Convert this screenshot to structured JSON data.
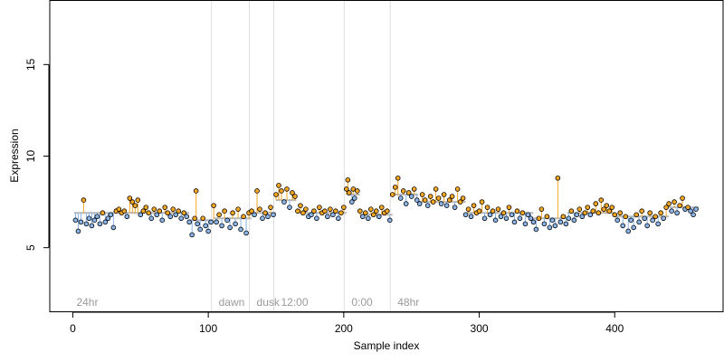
{
  "chart_data": {
    "type": "scatter",
    "title": "",
    "xlabel": "Sample index",
    "ylabel": "Expression",
    "xlim": [
      -17,
      480
    ],
    "ylim": [
      1.5,
      18.5
    ],
    "x_ticks": [
      0,
      100,
      200,
      300,
      400
    ],
    "y_ticks": [
      5,
      10,
      15
    ],
    "grid": false,
    "legend": "none",
    "colors": {
      "above_fit": "#f5a623",
      "below_fit": "#8ab4e8",
      "fit_line": "#b8b8b8",
      "phase_line": "#dddddd",
      "phase_text": "#9a9a9a"
    },
    "phase_markers": [
      {
        "label": "24hr",
        "x": 0
      },
      {
        "label": "dawn",
        "x": 105
      },
      {
        "label": "dusk",
        "x": 133
      },
      {
        "label": "12:00",
        "x": 151
      },
      {
        "label": "0:00",
        "x": 203
      },
      {
        "label": "48hr",
        "x": 237
      }
    ],
    "segments": [
      {
        "x0": 1,
        "x1": 86,
        "level": 6.9
      },
      {
        "x0": 86,
        "x1": 104,
        "level": 6.5
      },
      {
        "x0": 104,
        "x1": 132,
        "level": 6.6
      },
      {
        "x0": 132,
        "x1": 150,
        "level": 6.9
      },
      {
        "x0": 150,
        "x1": 165,
        "level": 7.6
      },
      {
        "x0": 165,
        "x1": 202,
        "level": 6.9
      },
      {
        "x0": 202,
        "x1": 212,
        "level": 7.9
      },
      {
        "x0": 212,
        "x1": 236,
        "level": 6.8
      },
      {
        "x0": 236,
        "x1": 255,
        "level": 7.9
      },
      {
        "x0": 255,
        "x1": 290,
        "level": 7.5
      },
      {
        "x0": 290,
        "x1": 340,
        "level": 6.9
      },
      {
        "x0": 340,
        "x1": 365,
        "level": 6.6
      },
      {
        "x0": 365,
        "x1": 400,
        "level": 6.9
      },
      {
        "x0": 400,
        "x1": 440,
        "level": 6.7
      },
      {
        "x0": 440,
        "x1": 462,
        "level": 7.2
      }
    ],
    "points": [
      {
        "x": 2,
        "y": 6.5
      },
      {
        "x": 4,
        "y": 5.9
      },
      {
        "x": 6,
        "y": 6.4
      },
      {
        "x": 8,
        "y": 7.6
      },
      {
        "x": 10,
        "y": 6.3
      },
      {
        "x": 12,
        "y": 6.6
      },
      {
        "x": 14,
        "y": 6.2
      },
      {
        "x": 16,
        "y": 6.5
      },
      {
        "x": 18,
        "y": 6.7
      },
      {
        "x": 20,
        "y": 6.3
      },
      {
        "x": 22,
        "y": 6.9
      },
      {
        "x": 24,
        "y": 6.4
      },
      {
        "x": 26,
        "y": 6.6
      },
      {
        "x": 28,
        "y": 6.8
      },
      {
        "x": 30,
        "y": 6.1
      },
      {
        "x": 32,
        "y": 7.0
      },
      {
        "x": 34,
        "y": 7.1
      },
      {
        "x": 36,
        "y": 6.9
      },
      {
        "x": 38,
        "y": 7.0
      },
      {
        "x": 40,
        "y": 6.7
      },
      {
        "x": 42,
        "y": 7.7
      },
      {
        "x": 44,
        "y": 7.5
      },
      {
        "x": 46,
        "y": 7.3
      },
      {
        "x": 48,
        "y": 7.6
      },
      {
        "x": 50,
        "y": 6.8
      },
      {
        "x": 52,
        "y": 7.0
      },
      {
        "x": 54,
        "y": 7.2
      },
      {
        "x": 56,
        "y": 6.9
      },
      {
        "x": 58,
        "y": 6.6
      },
      {
        "x": 60,
        "y": 7.1
      },
      {
        "x": 62,
        "y": 6.8
      },
      {
        "x": 64,
        "y": 7.0
      },
      {
        "x": 66,
        "y": 6.5
      },
      {
        "x": 68,
        "y": 7.2
      },
      {
        "x": 70,
        "y": 6.9
      },
      {
        "x": 72,
        "y": 6.7
      },
      {
        "x": 74,
        "y": 7.1
      },
      {
        "x": 76,
        "y": 6.8
      },
      {
        "x": 78,
        "y": 7.0
      },
      {
        "x": 80,
        "y": 6.6
      },
      {
        "x": 82,
        "y": 6.9
      },
      {
        "x": 84,
        "y": 6.7
      },
      {
        "x": 86,
        "y": 6.4
      },
      {
        "x": 88,
        "y": 5.7
      },
      {
        "x": 90,
        "y": 6.6
      },
      {
        "x": 91,
        "y": 8.1
      },
      {
        "x": 92,
        "y": 6.3
      },
      {
        "x": 94,
        "y": 6.0
      },
      {
        "x": 96,
        "y": 6.6
      },
      {
        "x": 98,
        "y": 6.2
      },
      {
        "x": 100,
        "y": 5.9
      },
      {
        "x": 102,
        "y": 6.4
      },
      {
        "x": 104,
        "y": 7.3
      },
      {
        "x": 106,
        "y": 6.4
      },
      {
        "x": 108,
        "y": 6.8
      },
      {
        "x": 110,
        "y": 6.2
      },
      {
        "x": 112,
        "y": 7.0
      },
      {
        "x": 114,
        "y": 6.5
      },
      {
        "x": 116,
        "y": 6.1
      },
      {
        "x": 118,
        "y": 6.9
      },
      {
        "x": 120,
        "y": 6.3
      },
      {
        "x": 122,
        "y": 7.1
      },
      {
        "x": 124,
        "y": 6.0
      },
      {
        "x": 126,
        "y": 6.7
      },
      {
        "x": 128,
        "y": 5.8
      },
      {
        "x": 130,
        "y": 6.9
      },
      {
        "x": 132,
        "y": 7.0
      },
      {
        "x": 134,
        "y": 6.8
      },
      {
        "x": 136,
        "y": 8.1
      },
      {
        "x": 138,
        "y": 7.1
      },
      {
        "x": 140,
        "y": 6.6
      },
      {
        "x": 142,
        "y": 6.9
      },
      {
        "x": 144,
        "y": 6.7
      },
      {
        "x": 146,
        "y": 7.2
      },
      {
        "x": 148,
        "y": 6.8
      },
      {
        "x": 150,
        "y": 7.9
      },
      {
        "x": 152,
        "y": 8.4
      },
      {
        "x": 154,
        "y": 8.1
      },
      {
        "x": 156,
        "y": 7.5
      },
      {
        "x": 158,
        "y": 8.2
      },
      {
        "x": 160,
        "y": 7.2
      },
      {
        "x": 162,
        "y": 8.0
      },
      {
        "x": 164,
        "y": 7.8
      },
      {
        "x": 166,
        "y": 7.0
      },
      {
        "x": 168,
        "y": 7.3
      },
      {
        "x": 170,
        "y": 6.9
      },
      {
        "x": 172,
        "y": 7.1
      },
      {
        "x": 174,
        "y": 6.7
      },
      {
        "x": 176,
        "y": 6.8
      },
      {
        "x": 178,
        "y": 7.0
      },
      {
        "x": 180,
        "y": 6.6
      },
      {
        "x": 182,
        "y": 7.2
      },
      {
        "x": 184,
        "y": 6.9
      },
      {
        "x": 186,
        "y": 7.0
      },
      {
        "x": 188,
        "y": 6.7
      },
      {
        "x": 190,
        "y": 7.1
      },
      {
        "x": 192,
        "y": 6.8
      },
      {
        "x": 194,
        "y": 7.0
      },
      {
        "x": 196,
        "y": 6.6
      },
      {
        "x": 198,
        "y": 6.9
      },
      {
        "x": 200,
        "y": 7.2
      },
      {
        "x": 202,
        "y": 8.2
      },
      {
        "x": 203,
        "y": 8.7
      },
      {
        "x": 204,
        "y": 8.0
      },
      {
        "x": 206,
        "y": 7.5
      },
      {
        "x": 207,
        "y": 8.2
      },
      {
        "x": 208,
        "y": 7.7
      },
      {
        "x": 210,
        "y": 8.1
      },
      {
        "x": 212,
        "y": 7.0
      },
      {
        "x": 214,
        "y": 6.7
      },
      {
        "x": 216,
        "y": 6.9
      },
      {
        "x": 218,
        "y": 6.6
      },
      {
        "x": 220,
        "y": 7.1
      },
      {
        "x": 222,
        "y": 6.8
      },
      {
        "x": 224,
        "y": 7.0
      },
      {
        "x": 226,
        "y": 6.7
      },
      {
        "x": 228,
        "y": 7.2
      },
      {
        "x": 230,
        "y": 6.9
      },
      {
        "x": 232,
        "y": 7.0
      },
      {
        "x": 234,
        "y": 6.5
      },
      {
        "x": 236,
        "y": 7.9
      },
      {
        "x": 238,
        "y": 8.3
      },
      {
        "x": 240,
        "y": 8.8
      },
      {
        "x": 242,
        "y": 7.7
      },
      {
        "x": 244,
        "y": 8.1
      },
      {
        "x": 246,
        "y": 7.4
      },
      {
        "x": 248,
        "y": 8.0
      },
      {
        "x": 250,
        "y": 7.8
      },
      {
        "x": 252,
        "y": 8.2
      },
      {
        "x": 254,
        "y": 7.6
      },
      {
        "x": 256,
        "y": 7.4
      },
      {
        "x": 258,
        "y": 7.9
      },
      {
        "x": 260,
        "y": 7.6
      },
      {
        "x": 262,
        "y": 7.3
      },
      {
        "x": 264,
        "y": 7.8
      },
      {
        "x": 266,
        "y": 7.5
      },
      {
        "x": 268,
        "y": 8.2
      },
      {
        "x": 270,
        "y": 7.7
      },
      {
        "x": 272,
        "y": 7.4
      },
      {
        "x": 274,
        "y": 7.9
      },
      {
        "x": 276,
        "y": 7.3
      },
      {
        "x": 278,
        "y": 7.6
      },
      {
        "x": 280,
        "y": 7.8
      },
      {
        "x": 282,
        "y": 7.2
      },
      {
        "x": 284,
        "y": 8.2
      },
      {
        "x": 286,
        "y": 7.5
      },
      {
        "x": 288,
        "y": 7.7
      },
      {
        "x": 290,
        "y": 6.8
      },
      {
        "x": 292,
        "y": 7.1
      },
      {
        "x": 294,
        "y": 6.7
      },
      {
        "x": 296,
        "y": 7.3
      },
      {
        "x": 298,
        "y": 6.9
      },
      {
        "x": 300,
        "y": 7.0
      },
      {
        "x": 302,
        "y": 7.5
      },
      {
        "x": 304,
        "y": 6.6
      },
      {
        "x": 306,
        "y": 7.2
      },
      {
        "x": 308,
        "y": 6.8
      },
      {
        "x": 310,
        "y": 7.0
      },
      {
        "x": 312,
        "y": 6.5
      },
      {
        "x": 314,
        "y": 7.1
      },
      {
        "x": 316,
        "y": 6.7
      },
      {
        "x": 318,
        "y": 6.9
      },
      {
        "x": 320,
        "y": 6.6
      },
      {
        "x": 322,
        "y": 7.2
      },
      {
        "x": 324,
        "y": 6.8
      },
      {
        "x": 326,
        "y": 6.4
      },
      {
        "x": 328,
        "y": 7.0
      },
      {
        "x": 330,
        "y": 6.6
      },
      {
        "x": 332,
        "y": 6.9
      },
      {
        "x": 334,
        "y": 6.3
      },
      {
        "x": 336,
        "y": 6.8
      },
      {
        "x": 338,
        "y": 6.6
      },
      {
        "x": 340,
        "y": 6.4
      },
      {
        "x": 342,
        "y": 6.0
      },
      {
        "x": 344,
        "y": 6.6
      },
      {
        "x": 346,
        "y": 7.1
      },
      {
        "x": 348,
        "y": 6.3
      },
      {
        "x": 350,
        "y": 6.7
      },
      {
        "x": 352,
        "y": 6.1
      },
      {
        "x": 354,
        "y": 6.5
      },
      {
        "x": 356,
        "y": 6.2
      },
      {
        "x": 358,
        "y": 8.8
      },
      {
        "x": 360,
        "y": 6.4
      },
      {
        "x": 362,
        "y": 6.7
      },
      {
        "x": 364,
        "y": 6.3
      },
      {
        "x": 366,
        "y": 6.6
      },
      {
        "x": 368,
        "y": 7.0
      },
      {
        "x": 370,
        "y": 6.5
      },
      {
        "x": 372,
        "y": 6.8
      },
      {
        "x": 374,
        "y": 7.1
      },
      {
        "x": 376,
        "y": 6.7
      },
      {
        "x": 378,
        "y": 6.9
      },
      {
        "x": 380,
        "y": 7.2
      },
      {
        "x": 382,
        "y": 6.8
      },
      {
        "x": 384,
        "y": 7.0
      },
      {
        "x": 386,
        "y": 7.4
      },
      {
        "x": 388,
        "y": 6.9
      },
      {
        "x": 390,
        "y": 7.6
      },
      {
        "x": 392,
        "y": 7.1
      },
      {
        "x": 394,
        "y": 7.3
      },
      {
        "x": 396,
        "y": 7.0
      },
      {
        "x": 398,
        "y": 7.2
      },
      {
        "x": 400,
        "y": 6.8
      },
      {
        "x": 402,
        "y": 6.5
      },
      {
        "x": 404,
        "y": 6.9
      },
      {
        "x": 406,
        "y": 6.2
      },
      {
        "x": 408,
        "y": 6.7
      },
      {
        "x": 410,
        "y": 5.9
      },
      {
        "x": 412,
        "y": 6.5
      },
      {
        "x": 414,
        "y": 6.1
      },
      {
        "x": 416,
        "y": 6.8
      },
      {
        "x": 418,
        "y": 6.4
      },
      {
        "x": 420,
        "y": 7.0
      },
      {
        "x": 422,
        "y": 6.6
      },
      {
        "x": 424,
        "y": 6.2
      },
      {
        "x": 426,
        "y": 6.9
      },
      {
        "x": 428,
        "y": 6.5
      },
      {
        "x": 430,
        "y": 6.7
      },
      {
        "x": 432,
        "y": 6.3
      },
      {
        "x": 434,
        "y": 6.9
      },
      {
        "x": 436,
        "y": 6.6
      },
      {
        "x": 438,
        "y": 7.2
      },
      {
        "x": 440,
        "y": 7.4
      },
      {
        "x": 442,
        "y": 7.0
      },
      {
        "x": 444,
        "y": 7.5
      },
      {
        "x": 446,
        "y": 6.9
      },
      {
        "x": 448,
        "y": 7.3
      },
      {
        "x": 450,
        "y": 7.7
      },
      {
        "x": 452,
        "y": 7.1
      },
      {
        "x": 454,
        "y": 7.2
      },
      {
        "x": 456,
        "y": 7.0
      },
      {
        "x": 458,
        "y": 6.8
      },
      {
        "x": 460,
        "y": 7.1
      }
    ]
  }
}
